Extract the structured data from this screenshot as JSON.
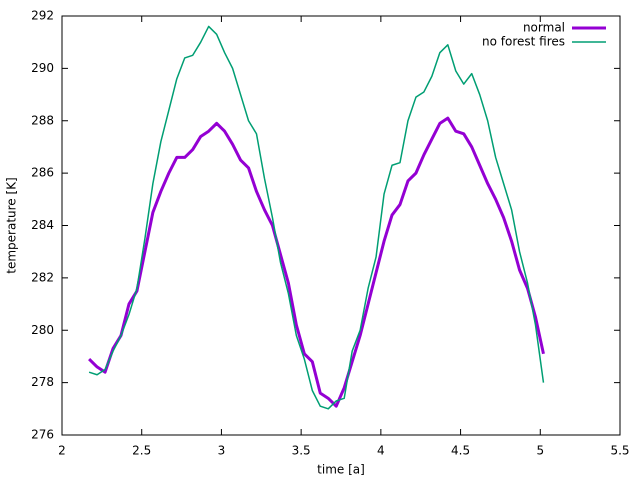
{
  "chart_data": {
    "type": "line",
    "x_label": "time [a]",
    "y_label": "temperature [K]",
    "xlim": [
      2,
      5.5
    ],
    "xticks": [
      2,
      2.5,
      3,
      3.5,
      4,
      4.5,
      5,
      5.5
    ],
    "ylim": [
      276,
      292
    ],
    "yticks": [
      276,
      278,
      280,
      282,
      284,
      286,
      288,
      290,
      292
    ],
    "grid": false,
    "legend": "top-right",
    "x": [
      2.17,
      2.22,
      2.27,
      2.32,
      2.37,
      2.42,
      2.47,
      2.52,
      2.57,
      2.62,
      2.67,
      2.72,
      2.77,
      2.82,
      2.87,
      2.92,
      2.97,
      3.02,
      3.07,
      3.12,
      3.17,
      3.22,
      3.27,
      3.32,
      3.37,
      3.42,
      3.47,
      3.52,
      3.57,
      3.62,
      3.67,
      3.72,
      3.77,
      3.82,
      3.87,
      3.92,
      3.97,
      4.02,
      4.07,
      4.12,
      4.17,
      4.22,
      4.27,
      4.32,
      4.37,
      4.42,
      4.47,
      4.52,
      4.57,
      4.62,
      4.67,
      4.72,
      4.77,
      4.82,
      4.87,
      4.92,
      4.97,
      5.02
    ],
    "series": [
      {
        "name": "normal",
        "color": "#9400d3",
        "width": 3,
        "values": [
          278.9,
          278.6,
          278.4,
          279.3,
          279.8,
          281.0,
          281.5,
          283.0,
          284.5,
          285.3,
          286.0,
          286.6,
          286.6,
          286.9,
          287.4,
          287.6,
          287.9,
          287.6,
          287.1,
          286.5,
          286.2,
          285.3,
          284.6,
          284.0,
          282.9,
          281.8,
          280.2,
          279.1,
          278.8,
          277.6,
          277.4,
          277.1,
          277.8,
          278.8,
          279.8,
          281.0,
          282.2,
          283.4,
          284.4,
          284.8,
          285.7,
          286.0,
          286.7,
          287.3,
          287.9,
          288.1,
          287.6,
          287.5,
          287.0,
          286.3,
          285.6,
          285.0,
          284.3,
          283.4,
          282.3,
          281.6,
          280.5,
          279.1
        ]
      },
      {
        "name": "no forest fires",
        "color": "#009e73",
        "width": 1.5,
        "values": [
          278.4,
          278.3,
          278.5,
          279.2,
          279.8,
          280.6,
          281.6,
          283.5,
          285.6,
          287.2,
          288.4,
          289.6,
          290.4,
          290.5,
          291.0,
          291.6,
          291.3,
          290.6,
          290.0,
          289.0,
          288.0,
          287.5,
          285.8,
          284.3,
          282.6,
          281.4,
          279.8,
          278.9,
          277.7,
          277.1,
          277.0,
          277.3,
          277.4,
          279.2,
          280.0,
          281.6,
          282.8,
          285.2,
          286.3,
          286.4,
          288.0,
          288.9,
          289.1,
          289.7,
          290.6,
          290.9,
          289.9,
          289.4,
          289.8,
          289.0,
          288.0,
          286.6,
          285.6,
          284.6,
          283.0,
          281.8,
          280.2,
          278.0
        ]
      }
    ]
  }
}
